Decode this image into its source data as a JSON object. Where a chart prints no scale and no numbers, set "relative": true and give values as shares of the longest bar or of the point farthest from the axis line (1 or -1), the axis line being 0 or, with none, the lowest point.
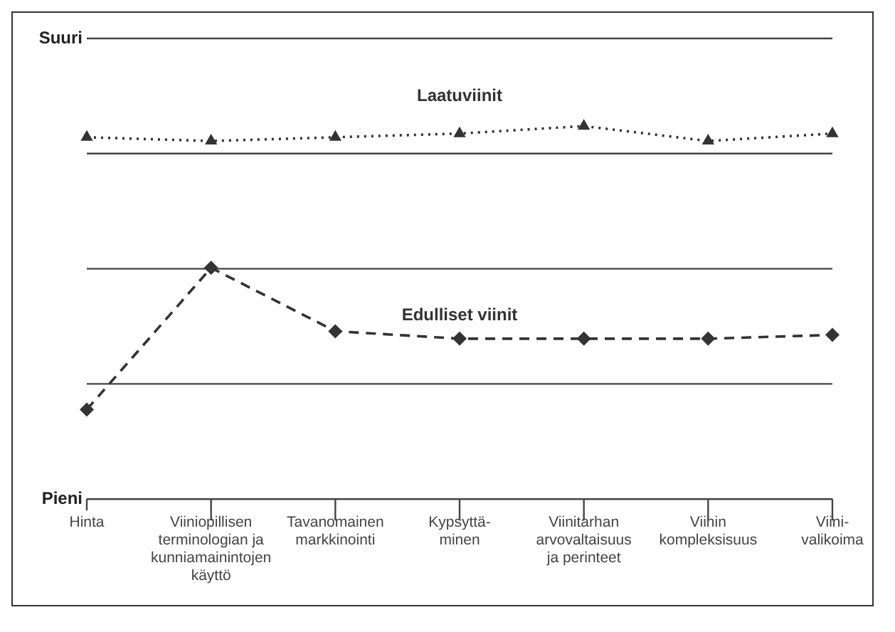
{
  "chart_data": {
    "type": "line",
    "relative": true,
    "categories": [
      "Hinta",
      "Viiniopillisen terminologian ja kunniamainintojen käyttö",
      "Tavanomainen markkinointi",
      "Kypsyttä-minen",
      "Viinitarhan arvovaltaisuus ja perinteet",
      "Viinin kompleksisuus",
      "Viini-valikoima"
    ],
    "series": [
      {
        "name": "Laatuviinit",
        "color": "#333333",
        "marker": "triangle",
        "line_style": "dotted",
        "values": [
          0.97,
          0.96,
          0.97,
          0.98,
          1.0,
          0.96,
          0.98
        ]
      },
      {
        "name": "Edulliset viinit",
        "color": "#333333",
        "marker": "diamond",
        "line_style": "dashed",
        "values": [
          0.24,
          0.62,
          0.45,
          0.43,
          0.43,
          0.43,
          0.44
        ]
      }
    ],
    "annotations": [
      "Suuri",
      "Pieni"
    ],
    "grid": true,
    "legend": false
  }
}
